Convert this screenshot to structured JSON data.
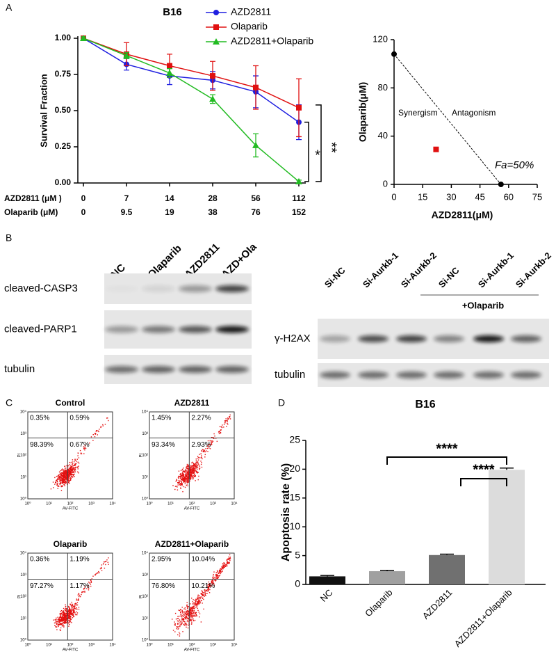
{
  "panel_labels": [
    "A",
    "B",
    "C",
    "D"
  ],
  "chart_data": [
    {
      "type": "line",
      "title": "B16",
      "y_label": "Survival Fraction",
      "x_label": "AZD2811 (μM )",
      "x2_label": "Olaparib  (μM)",
      "categories": [
        "0",
        "7",
        "14",
        "28",
        "56",
        "112"
      ],
      "categories2": [
        "0",
        "9.5",
        "19",
        "38",
        "76",
        "152"
      ],
      "ylim": [
        0,
        1
      ],
      "yticks": [
        {
          "value": 0,
          "label": "0.00"
        },
        {
          "value": 0.25,
          "label": "0.25"
        },
        {
          "value": 0.5,
          "label": "0.50"
        },
        {
          "value": 0.75,
          "label": "0.75"
        },
        {
          "value": 1,
          "label": "1.00"
        }
      ],
      "series": [
        {
          "name": "AZD2811",
          "color": "#1f1fe0",
          "marker": "circle",
          "values": [
            1,
            0.82,
            0.74,
            0.71,
            0.63,
            0.42
          ],
          "errors": [
            0.01,
            0.04,
            0.06,
            0.06,
            0.11,
            0.12
          ]
        },
        {
          "name": "Olaparib",
          "color": "#e01010",
          "marker": "square",
          "values": [
            1,
            0.89,
            0.81,
            0.74,
            0.66,
            0.52
          ],
          "errors": [
            0.01,
            0.08,
            0.08,
            0.1,
            0.15,
            0.2
          ]
        },
        {
          "name": "AZD2811+Olaparib",
          "color": "#22bb22",
          "marker": "triangle",
          "values": [
            1,
            0.88,
            0.76,
            0.58,
            0.26,
            0.01
          ],
          "errors": [
            0.01,
            0.02,
            0.03,
            0.03,
            0.08,
            0.01
          ]
        }
      ],
      "annotations": [
        "*",
        "**"
      ]
    },
    {
      "type": "scatter",
      "x_label": "AZD2811(μM)",
      "y_label": "Olaparib(μM)",
      "xlim": [
        0,
        75
      ],
      "xticks": [
        0,
        15,
        30,
        45,
        60,
        75
      ],
      "ylim": [
        0,
        120
      ],
      "yticks": [
        0,
        40,
        80,
        120
      ],
      "series": [
        {
          "color": "#000000",
          "marker": "circle",
          "line": "dashed",
          "x": [
            0,
            56
          ],
          "values": [
            108,
            0
          ]
        },
        {
          "color": "#e01010",
          "marker": "square",
          "x": [
            22
          ],
          "values": [
            29
          ]
        }
      ],
      "annotations": [
        {
          "text": "Synergism",
          "color": "#e01010"
        },
        {
          "text": "Antagonism",
          "color": "#2020d0"
        },
        {
          "text": "Fa=50%",
          "color": "#000000"
        }
      ]
    },
    {
      "type": "bar",
      "title": "B16",
      "y_label": "Apoptosis rate (%)",
      "categories": [
        "NC",
        "Olaparib",
        "AZD2811",
        "AZD2811+Olaparib"
      ],
      "values": [
        1.4,
        2.3,
        5.1,
        19.9
      ],
      "errors": [
        0.15,
        0.15,
        0.15,
        0.3
      ],
      "colors": [
        "#111111",
        "#a0a0a0",
        "#707070",
        "#dcdcdc"
      ],
      "ylim": [
        0,
        25
      ],
      "yticks": [
        0,
        5,
        10,
        15,
        20,
        25
      ],
      "annotations": [
        "****",
        "****"
      ]
    }
  ],
  "western_blot": {
    "left": {
      "lanes": [
        "NC",
        "Olaparib",
        "AZD2811",
        "AZD+Ola"
      ],
      "rows": [
        "cleaved-CASP3",
        "cleaved-PARP1",
        "tubulin"
      ]
    },
    "right": {
      "lanes": [
        "Si-NC",
        "Si-Aurkb-1",
        "Si-Aurkb-2",
        "Si-NC",
        "Si-Aurkb-1",
        "Si-Aurkb-2"
      ],
      "treatment": "+Olaparib",
      "rows": [
        "γ-H2AX",
        "tubulin"
      ]
    }
  },
  "flow_cytometry": {
    "x_label": "AV-FITC",
    "y_label": "PI",
    "ticks": [
      "10⁰",
      "10¹",
      "10²",
      "10³",
      "10⁴"
    ],
    "plots": [
      {
        "title": "Control",
        "quadrants": [
          "0.35%",
          "0.59%",
          "98.39%",
          "0.67%"
        ]
      },
      {
        "title": "AZD2811",
        "quadrants": [
          "1.45%",
          "2.27%",
          "93.34%",
          "2.93%"
        ]
      },
      {
        "title": "Olaparib",
        "quadrants": [
          "0.36%",
          "1.19%",
          "97.27%",
          "1.17%"
        ]
      },
      {
        "title": "AZD2811+Olaparib",
        "quadrants": [
          "2.95%",
          "10.04%",
          "76.80%",
          "10.21%"
        ]
      }
    ]
  }
}
